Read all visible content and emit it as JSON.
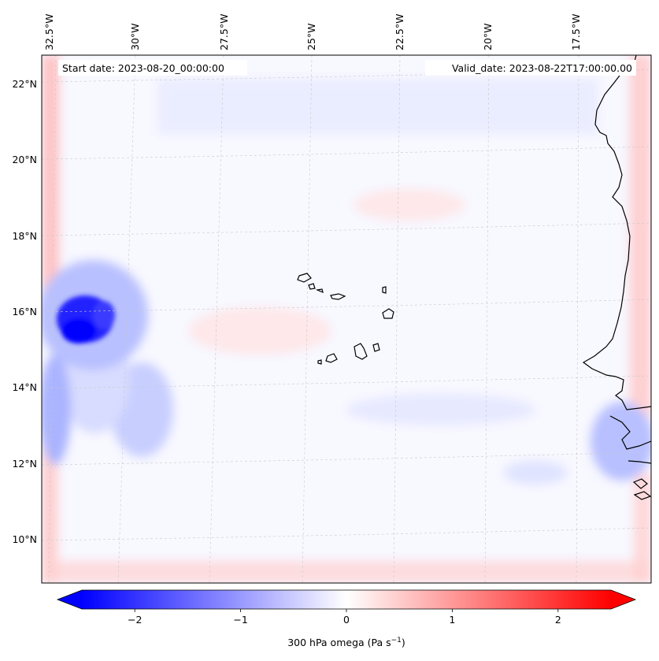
{
  "map": {
    "start_date": "Start date: 2023-08-20_00:00:00",
    "valid_date": "Valid_date: 2023-08-22T17:00:00.00",
    "lon_labels": [
      "32.5°W",
      "30°W",
      "27.5°W",
      "25°W",
      "22.5°W",
      "20°W",
      "17.5°W"
    ],
    "lat_labels": [
      "22°N",
      "20°N",
      "18°N",
      "16°N",
      "14°N",
      "12°N",
      "10°N"
    ]
  },
  "colorbar": {
    "ticks": [
      "−2",
      "−1",
      "0",
      "1",
      "2"
    ],
    "tick_values": [
      -2,
      -1,
      0,
      1,
      2
    ],
    "range": [
      -2.5,
      2.5
    ],
    "label_main": "300 hPa omega (Pa s",
    "label_exp": "−1",
    "label_close": ")",
    "colors": {
      "neg": "#0000ff",
      "zero": "#ffffff",
      "pos": "#ff0000"
    }
  }
}
